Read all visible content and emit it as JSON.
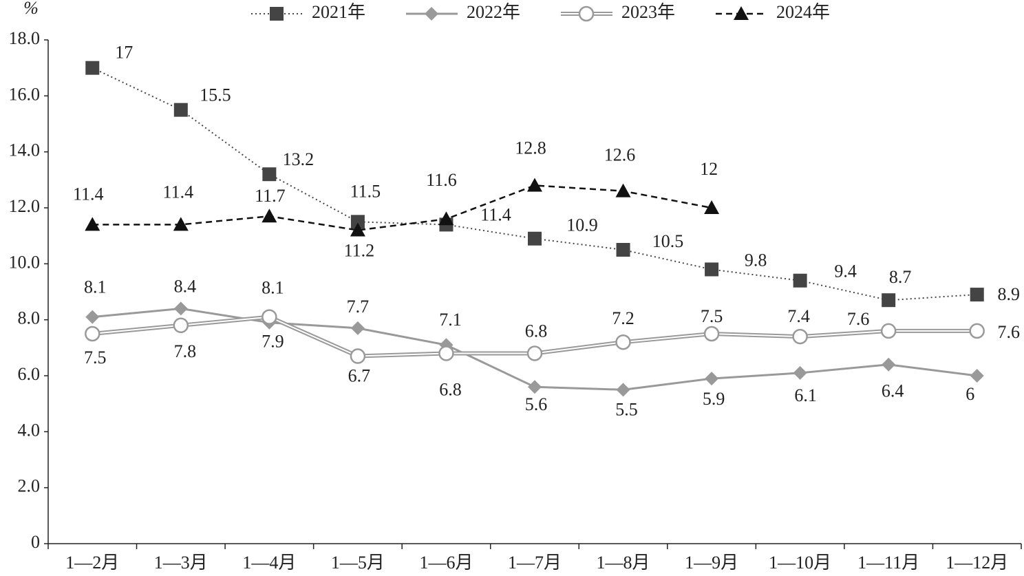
{
  "chart_data": {
    "type": "line",
    "y_label": "%",
    "categories": [
      "1—2月",
      "1—3月",
      "1—4月",
      "1—5月",
      "1—6月",
      "1—7月",
      "1—8月",
      "1—9月",
      "1—10月",
      "1—11月",
      "1—12月"
    ],
    "series": [
      {
        "name": "2021年",
        "color": "#444444",
        "values": [
          17,
          15.5,
          13.2,
          11.5,
          11.4,
          10.9,
          10.5,
          9.8,
          9.4,
          8.7,
          8.9
        ]
      },
      {
        "name": "2022年",
        "color": "#999999",
        "values": [
          8.1,
          8.4,
          7.9,
          7.7,
          7.1,
          5.6,
          5.5,
          5.9,
          6.1,
          6.4,
          6
        ]
      },
      {
        "name": "2023年",
        "color": "#999999",
        "values": [
          7.5,
          7.8,
          8.1,
          6.7,
          6.8,
          6.8,
          7.2,
          7.5,
          7.4,
          7.6,
          7.6
        ]
      },
      {
        "name": "2024年",
        "color": "#111111",
        "values": [
          11.4,
          11.4,
          11.7,
          11.2,
          11.6,
          12.8,
          12.6,
          12,
          null,
          null,
          null
        ]
      }
    ],
    "ylim": [
      0,
      18
    ],
    "yticks": [
      0,
      {
        "value": 2,
        "label": "2.0"
      },
      {
        "value": 4,
        "label": "4.0"
      },
      {
        "value": 6,
        "label": "6.0"
      },
      {
        "value": 8,
        "label": "8.0"
      },
      {
        "value": 10,
        "label": "10.0"
      },
      {
        "value": 12,
        "label": "12.0"
      },
      {
        "value": 14,
        "label": "14.0"
      },
      {
        "value": 16,
        "label": "16.0"
      },
      {
        "value": 18,
        "label": "18.0"
      }
    ],
    "legend": "top"
  }
}
